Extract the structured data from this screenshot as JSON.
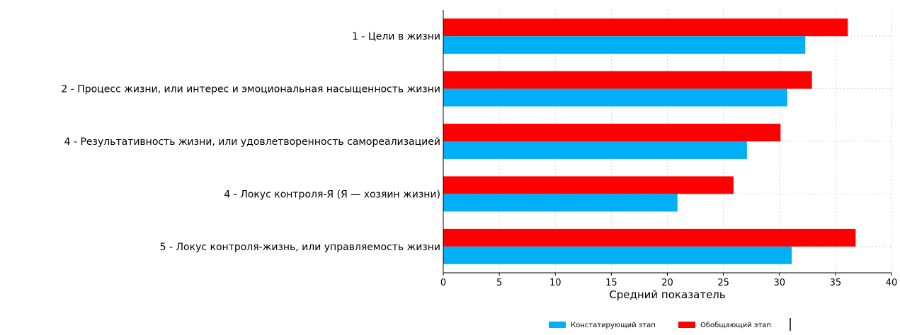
{
  "chart_data": {
    "type": "bar",
    "orientation": "horizontal",
    "categories": [
      "1 - Цели в жизни",
      "2 - Процесс жизни, или интерес и эмоциональная насыщенность жизни",
      "4 - Результативность жизни, или удовлетворенность самореализацией",
      "4 - Локус контроля-Я (Я — хозяин жизни)",
      "5 - Локус контроля-жизнь, или управляемость жизни"
    ],
    "series": [
      {
        "name": "Констатирующий этап",
        "color": "#00b0f6",
        "values": [
          32.3,
          30.7,
          27.1,
          20.9,
          31.1
        ]
      },
      {
        "name": "Обобщающий этап",
        "color": "#ff0000",
        "values": [
          36.1,
          32.9,
          30.1,
          25.9,
          36.8
        ]
      }
    ],
    "title": "",
    "xlabel": "Средний показатель",
    "ylabel": "",
    "xlim": [
      0,
      40
    ],
    "xticks": [
      0,
      5,
      10,
      15,
      20,
      25,
      30,
      35,
      40
    ],
    "grid": true,
    "legend_position": "bottom-right"
  }
}
